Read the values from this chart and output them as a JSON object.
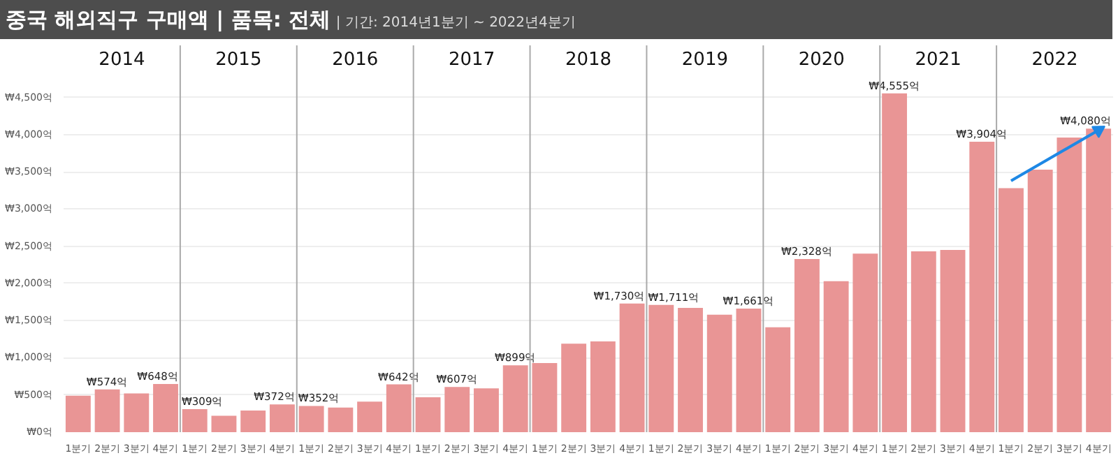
{
  "chart_data": {
    "type": "bar",
    "title": "중국 해외직구 구매액 | 품목: 전체",
    "subtitle": "| 기간: 2014년1분기 ~ 2022년4분기",
    "annotations": [
      "2014",
      "2015",
      "2016",
      "2017",
      "2018",
      "2019",
      "2020",
      "2021",
      "2022"
    ],
    "categories": [
      "1분기",
      "2분기",
      "3분기",
      "4분기",
      "1분기",
      "2분기",
      "3분기",
      "4분기",
      "1분기",
      "2분기",
      "3분기",
      "4분기",
      "1분기",
      "2분기",
      "3분기",
      "4분기",
      "1분기",
      "2분기",
      "3분기",
      "4분기",
      "1분기",
      "2분기",
      "3분기",
      "4분기",
      "1분기",
      "2분기",
      "3분기",
      "4분기",
      "1분기",
      "2분기",
      "3분기",
      "4분기",
      "1분기",
      "2분기",
      "3분기",
      "4분기"
    ],
    "series": [
      {
        "color": "#e88f8f",
        "values": [
          490,
          574,
          520,
          648,
          309,
          220,
          290,
          372,
          352,
          330,
          410,
          642,
          470,
          607,
          590,
          899,
          930,
          1190,
          1220,
          1730,
          1711,
          1670,
          1580,
          1661,
          1410,
          2328,
          2030,
          2400,
          4555,
          2430,
          2450,
          3904,
          3280,
          3530,
          3960,
          4080
        ],
        "value_labels": [
          null,
          "₩574억",
          null,
          "₩648억",
          "₩309억",
          null,
          null,
          "₩372억",
          "₩352억",
          null,
          null,
          "₩642억",
          null,
          "₩607억",
          null,
          "₩899억",
          null,
          null,
          null,
          "₩1,730억",
          "₩1,711억",
          null,
          null,
          "₩1,661억",
          null,
          "₩2,328억",
          null,
          null,
          "₩4,555억",
          null,
          null,
          "₩3,904억",
          null,
          null,
          null,
          "₩4,080억"
        ]
      },
      {
        "type": "line",
        "color": "#1e88e5",
        "values": [
          null,
          null,
          null,
          null,
          null,
          null,
          null,
          null,
          null,
          null,
          null,
          null,
          null,
          null,
          null,
          null,
          null,
          null,
          null,
          null,
          null,
          null,
          null,
          null,
          null,
          null,
          null,
          null,
          null,
          null,
          null,
          null,
          3380,
          null,
          null,
          4060
        ]
      }
    ],
    "ylim": [
      0,
      5200
    ],
    "yticks": [
      {
        "value": 0,
        "label": "₩0억"
      },
      {
        "value": 500,
        "label": "₩500억"
      },
      {
        "value": 1000,
        "label": "₩1,000억"
      },
      {
        "value": 1500,
        "label": "₩1,500억"
      },
      {
        "value": 2000,
        "label": "₩2,000억"
      },
      {
        "value": 2500,
        "label": "₩2,500억"
      },
      {
        "value": 3000,
        "label": "₩3,000억"
      },
      {
        "value": 3500,
        "label": "₩3,500억"
      },
      {
        "value": 4000,
        "label": "₩4,000억"
      },
      {
        "value": 4500,
        "label": "₩4,500억"
      }
    ],
    "grid": "y"
  }
}
